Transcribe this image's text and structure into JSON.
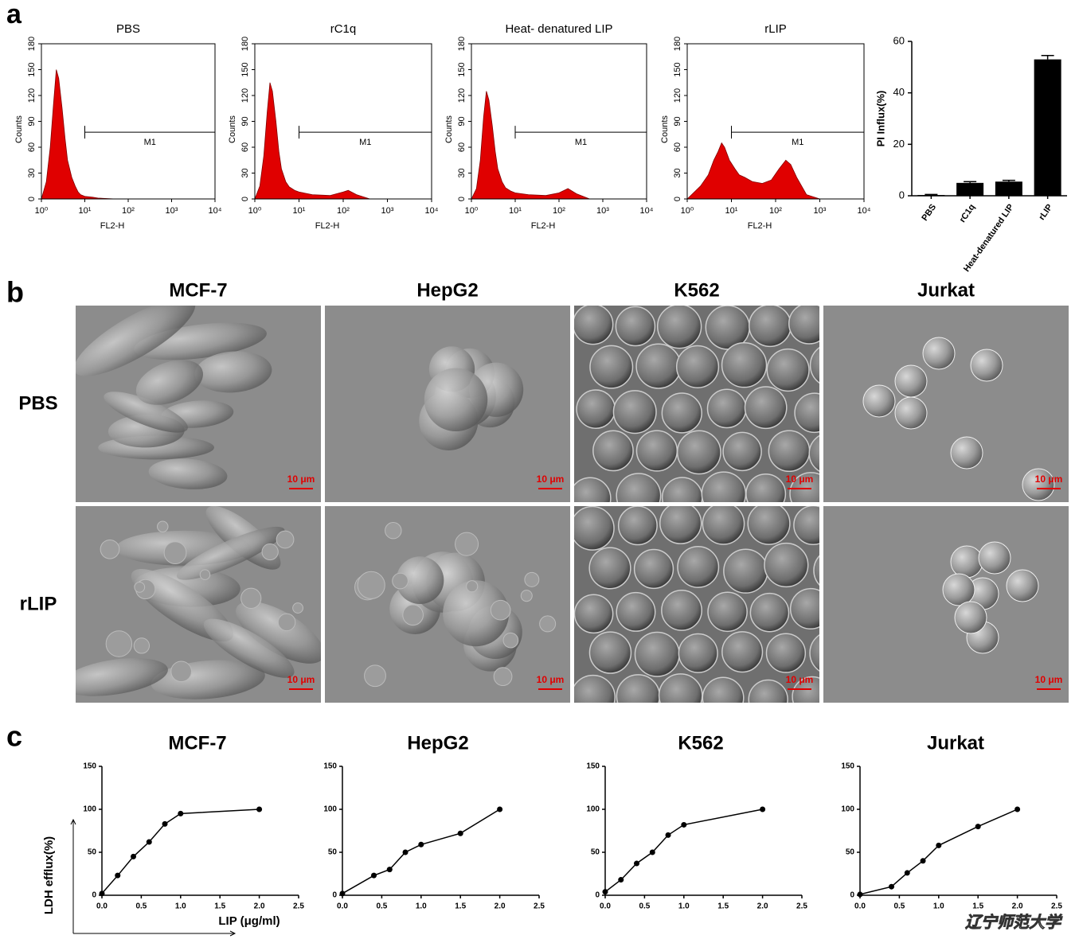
{
  "panel_labels": [
    "a",
    "b",
    "c"
  ],
  "micrographs": {
    "columns": [
      "MCF-7",
      "HepG2",
      "K562",
      "Jurkat"
    ],
    "rows": [
      "PBS",
      "rLIP"
    ],
    "scale_bar": "10 μm"
  },
  "watermark": "辽宁师范大学",
  "chart_data": [
    {
      "type": "histogram",
      "title": "PBS",
      "xlabel": "FL2-H",
      "ylabel": "Counts",
      "log_x": true,
      "color": "#e00000",
      "x": [
        1,
        1.3,
        1.6,
        1.9,
        2.2,
        2.5,
        3,
        3.5,
        4,
        5,
        6,
        7,
        8,
        10,
        15,
        20,
        50,
        100,
        1000,
        10000
      ],
      "values": [
        0,
        20,
        60,
        110,
        150,
        140,
        105,
        70,
        45,
        25,
        15,
        8,
        5,
        3,
        2,
        1,
        0,
        0,
        0,
        0
      ],
      "gate": [
        10,
        10000
      ],
      "gate_label": "M1",
      "xlim": [
        1,
        10000
      ],
      "xticks": [
        {
          "value": 1,
          "label": "10⁰"
        },
        {
          "value": 10,
          "label": "10¹"
        },
        {
          "value": 100,
          "label": "10²"
        },
        {
          "value": 1000,
          "label": "10³"
        },
        {
          "value": 10000,
          "label": "10⁴"
        }
      ],
      "ylim": [
        0,
        180
      ],
      "yticks": [
        0,
        30,
        60,
        90,
        120,
        150,
        180
      ]
    },
    {
      "type": "histogram",
      "title": "rC1q",
      "xlabel": "FL2-H",
      "ylabel": "Counts",
      "log_x": true,
      "color": "#e00000",
      "x": [
        1,
        1.3,
        1.6,
        1.9,
        2.2,
        2.5,
        3,
        3.5,
        4,
        5,
        6,
        8,
        10,
        20,
        50,
        100,
        130,
        200,
        400,
        10000
      ],
      "values": [
        0,
        15,
        50,
        100,
        135,
        125,
        90,
        55,
        35,
        20,
        14,
        10,
        8,
        5,
        4,
        8,
        10,
        5,
        0,
        0
      ],
      "gate": [
        10,
        10000
      ],
      "gate_label": "M1",
      "xlim": [
        1,
        10000
      ],
      "xticks": [
        {
          "value": 1,
          "label": "10⁰"
        },
        {
          "value": 10,
          "label": "10¹"
        },
        {
          "value": 100,
          "label": "10²"
        },
        {
          "value": 1000,
          "label": "10³"
        },
        {
          "value": 10000,
          "label": "10⁴"
        }
      ],
      "ylim": [
        0,
        180
      ],
      "yticks": [
        0,
        30,
        60,
        90,
        120,
        150,
        180
      ]
    },
    {
      "type": "histogram",
      "title": "Heat- denatured LIP",
      "xlabel": "FL2-H",
      "ylabel": "Counts",
      "log_x": true,
      "color": "#e00000",
      "x": [
        1,
        1.3,
        1.6,
        1.9,
        2.2,
        2.5,
        3,
        3.5,
        4,
        5,
        6,
        8,
        10,
        20,
        50,
        100,
        160,
        250,
        500,
        10000
      ],
      "values": [
        0,
        12,
        45,
        95,
        125,
        115,
        85,
        55,
        35,
        20,
        13,
        9,
        7,
        5,
        4,
        7,
        12,
        6,
        0,
        0
      ],
      "gate": [
        10,
        10000
      ],
      "gate_label": "M1",
      "xlim": [
        1,
        10000
      ],
      "xticks": [
        {
          "value": 1,
          "label": "10⁰"
        },
        {
          "value": 10,
          "label": "10¹"
        },
        {
          "value": 100,
          "label": "10²"
        },
        {
          "value": 1000,
          "label": "10³"
        },
        {
          "value": 10000,
          "label": "10⁴"
        }
      ],
      "ylim": [
        0,
        180
      ],
      "yticks": [
        0,
        30,
        60,
        90,
        120,
        150,
        180
      ]
    },
    {
      "type": "histogram",
      "title": "rLIP",
      "xlabel": "FL2-H",
      "ylabel": "Counts",
      "log_x": true,
      "color": "#e00000",
      "x": [
        1,
        2,
        3,
        4,
        5,
        6,
        7,
        9,
        12,
        15,
        20,
        30,
        50,
        80,
        120,
        170,
        220,
        300,
        500,
        1000,
        10000
      ],
      "values": [
        0,
        15,
        28,
        45,
        55,
        65,
        60,
        45,
        35,
        28,
        25,
        20,
        18,
        22,
        35,
        45,
        40,
        25,
        5,
        0,
        0
      ],
      "gate": [
        10,
        10000
      ],
      "gate_label": "M1",
      "xlim": [
        1,
        10000
      ],
      "xticks": [
        {
          "value": 1,
          "label": "10⁰"
        },
        {
          "value": 10,
          "label": "10¹"
        },
        {
          "value": 100,
          "label": "10²"
        },
        {
          "value": 1000,
          "label": "10³"
        },
        {
          "value": 10000,
          "label": "10⁴"
        }
      ],
      "ylim": [
        0,
        180
      ],
      "yticks": [
        0,
        30,
        60,
        90,
        120,
        150,
        180
      ]
    },
    {
      "type": "bar",
      "ylabel": "PI Influx(%)",
      "color": "#000000",
      "categories": [
        "PBS",
        "rC1q",
        "Heat-denatured LIP",
        "rLIP"
      ],
      "values": [
        0.3,
        5,
        5.5,
        53
      ],
      "errors": [
        0.2,
        0.5,
        0.5,
        1.5
      ],
      "ylim": [
        0,
        60
      ],
      "yticks": [
        0,
        20,
        40,
        60
      ]
    },
    {
      "type": "line",
      "title": "MCF-7",
      "ylabel": "LDH efflux(%)",
      "xlabel": "LIP (μg/ml)",
      "color": "#000000",
      "x": [
        0,
        0.2,
        0.4,
        0.6,
        0.8,
        1.0,
        2.0
      ],
      "values": [
        2,
        23,
        45,
        62,
        83,
        95,
        100
      ],
      "xlim": [
        0,
        2.5
      ],
      "xticks": [
        {
          "value": 0,
          "label": "0.0"
        },
        {
          "value": 0.5,
          "label": "0.5"
        },
        {
          "value": 1,
          "label": "1.0"
        },
        {
          "value": 1.5,
          "label": "1.5"
        },
        {
          "value": 2,
          "label": "2.0"
        },
        {
          "value": 2.5,
          "label": "2.5"
        }
      ],
      "ylim": [
        0,
        150
      ],
      "yticks": [
        0,
        50,
        100,
        150
      ]
    },
    {
      "type": "line",
      "title": "HepG2",
      "color": "#000000",
      "x": [
        0,
        0.4,
        0.6,
        0.8,
        1.0,
        1.5,
        2.0
      ],
      "values": [
        2,
        23,
        30,
        50,
        59,
        72,
        100
      ],
      "xlim": [
        0,
        2.5
      ],
      "xticks": [
        {
          "value": 0,
          "label": "0.0"
        },
        {
          "value": 0.5,
          "label": "0.5"
        },
        {
          "value": 1,
          "label": "1.0"
        },
        {
          "value": 1.5,
          "label": "1.5"
        },
        {
          "value": 2,
          "label": "2.0"
        },
        {
          "value": 2.5,
          "label": "2.5"
        }
      ],
      "ylim": [
        0,
        150
      ],
      "yticks": [
        0,
        50,
        100,
        150
      ]
    },
    {
      "type": "line",
      "title": "K562",
      "color": "#000000",
      "x": [
        0,
        0.2,
        0.4,
        0.6,
        0.8,
        1.0,
        2.0
      ],
      "values": [
        4,
        18,
        37,
        50,
        70,
        82,
        100
      ],
      "xlim": [
        0,
        2.5
      ],
      "xticks": [
        {
          "value": 0,
          "label": "0.0"
        },
        {
          "value": 0.5,
          "label": "0.5"
        },
        {
          "value": 1,
          "label": "1.0"
        },
        {
          "value": 1.5,
          "label": "1.5"
        },
        {
          "value": 2,
          "label": "2.0"
        },
        {
          "value": 2.5,
          "label": "2.5"
        }
      ],
      "ylim": [
        0,
        150
      ],
      "yticks": [
        0,
        50,
        100,
        150
      ]
    },
    {
      "type": "line",
      "title": "Jurkat",
      "color": "#000000",
      "x": [
        0,
        0.4,
        0.6,
        0.8,
        1.0,
        1.5,
        2.0
      ],
      "values": [
        1,
        10,
        26,
        40,
        58,
        80,
        100
      ],
      "xlim": [
        0,
        2.5
      ],
      "xticks": [
        {
          "value": 0,
          "label": "0.0"
        },
        {
          "value": 0.5,
          "label": "0.5"
        },
        {
          "value": 1,
          "label": "1.0"
        },
        {
          "value": 1.5,
          "label": "1.5"
        },
        {
          "value": 2,
          "label": "2.0"
        },
        {
          "value": 2.5,
          "label": "2.5"
        }
      ],
      "ylim": [
        0,
        150
      ],
      "yticks": [
        0,
        50,
        100,
        150
      ]
    }
  ]
}
